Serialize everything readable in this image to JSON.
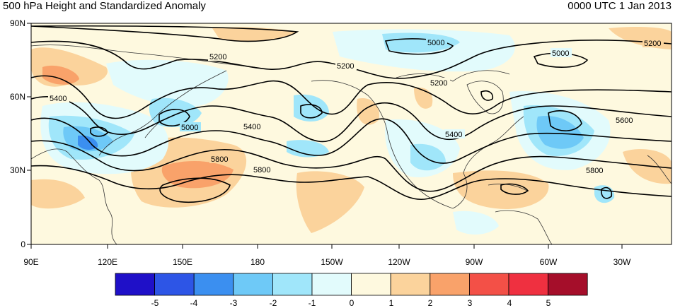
{
  "header": {
    "title": "500 hPa Height and Standardized Anomaly",
    "datetime": "0000 UTC 1 Jan 2013"
  },
  "map": {
    "lon_labels": [
      "90E",
      "120E",
      "150E",
      "180",
      "150W",
      "120W",
      "90W",
      "60W",
      "30W"
    ],
    "lat_labels": [
      "90N",
      "60N",
      "30N",
      "0"
    ],
    "contour_labels": [
      "5000",
      "5000",
      "5000",
      "5200",
      "5200",
      "5200",
      "5200",
      "5400",
      "5400",
      "5400",
      "5600",
      "5800",
      "5800",
      "5800"
    ],
    "contour_color": "#000000",
    "coastline_color": "#333333"
  },
  "colorbar": {
    "labels": [
      "-5",
      "-4",
      "-3",
      "-2",
      "-1",
      "0",
      "1",
      "2",
      "3",
      "4",
      "5"
    ],
    "colors": [
      "#1f10c8",
      "#2d55e6",
      "#3b8ff0",
      "#6ec9f7",
      "#a0e6fa",
      "#e2fbfc",
      "#fef9df",
      "#fbd39c",
      "#f9a26a",
      "#f35047",
      "#ef3040",
      "#a50e2a"
    ]
  }
}
